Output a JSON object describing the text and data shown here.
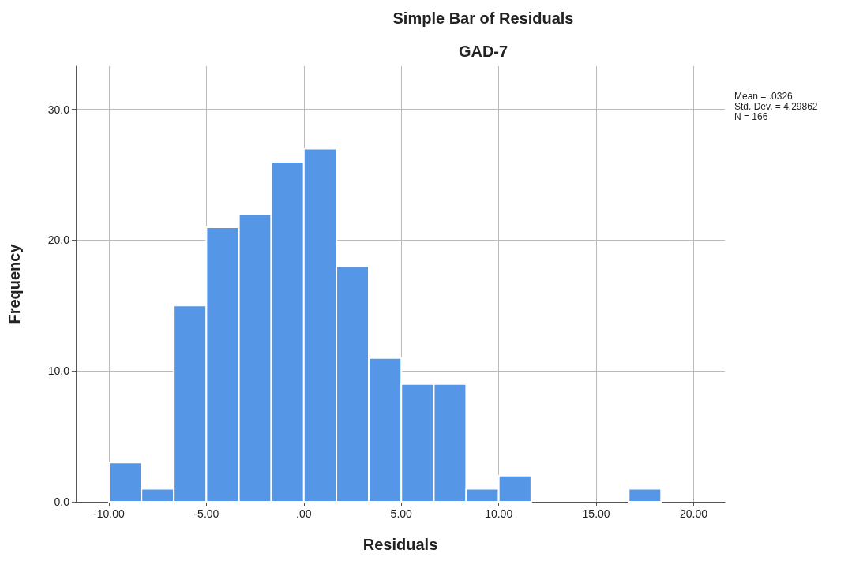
{
  "chart_data": {
    "type": "histogram",
    "title": "Simple Bar of Residuals",
    "subtitle": "GAD-7",
    "xlabel": "Residuals",
    "ylabel": "Frequency",
    "bins": [
      -10,
      -8.33,
      -6.67,
      -5,
      -3.33,
      -1.67,
      0,
      1.67,
      3.33,
      5,
      6.67,
      8.33,
      10,
      11.67,
      13.33,
      15,
      16.67,
      18.33
    ],
    "values": [
      3,
      1,
      15,
      21,
      22,
      26,
      27,
      18,
      11,
      9,
      9,
      1,
      2,
      0,
      0,
      0,
      1
    ],
    "color": "#5596e6",
    "xlim": [
      -11.7,
      21.6
    ],
    "xticks": [
      {
        "value": -10,
        "label": "-10.00"
      },
      {
        "value": -5,
        "label": "-5.00"
      },
      {
        "value": 0,
        "label": ".00"
      },
      {
        "value": 5,
        "label": "5.00"
      },
      {
        "value": 10,
        "label": "10.00"
      },
      {
        "value": 15,
        "label": "15.00"
      },
      {
        "value": 20,
        "label": "20.00"
      }
    ],
    "ylim": [
      0,
      33.3
    ],
    "yticks": [
      {
        "value": 0,
        "label": "0.0"
      },
      {
        "value": 10,
        "label": "10.0"
      },
      {
        "value": 20,
        "label": "20.0"
      },
      {
        "value": 30,
        "label": "30.0"
      }
    ],
    "grid": true,
    "annotations": [
      "Mean = .0326",
      "Std. Dev. = 4.29862",
      "N = 166"
    ]
  }
}
